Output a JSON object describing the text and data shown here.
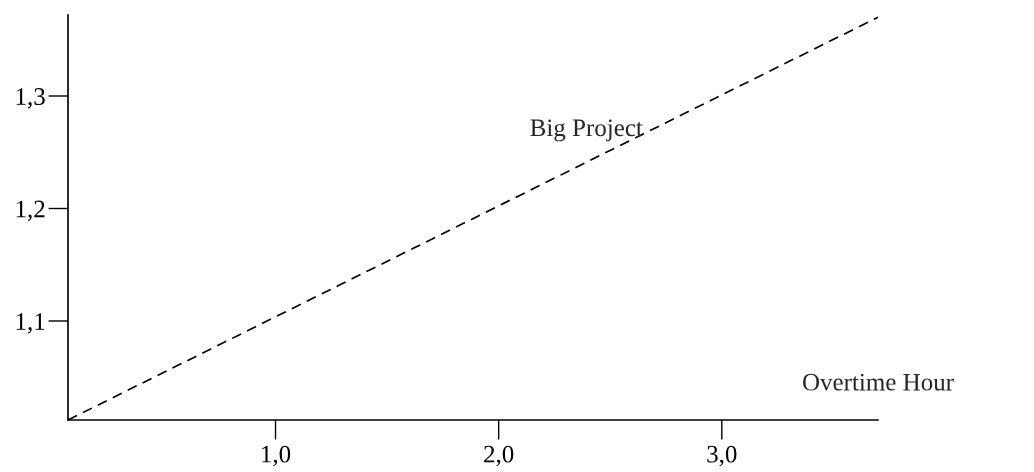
{
  "chart_data": {
    "type": "line",
    "xlabel": "Overtime Hour",
    "x": [
      0.07,
      3.7
    ],
    "series": [
      {
        "name": "Big Project",
        "color": "#000000",
        "values": [
          1.012,
          1.37
        ]
      }
    ],
    "line_style": "dashed",
    "marker": "none",
    "xlim": [
      0.07,
      3.7
    ],
    "ylim": [
      1.012,
      1.372
    ],
    "xticks": [
      {
        "value": 1.0,
        "label": "1,0"
      },
      {
        "value": 2.0,
        "label": "2,0"
      },
      {
        "value": 3.0,
        "label": "3,0"
      }
    ],
    "yticks": [
      {
        "value": 1.1,
        "label": "1,1"
      },
      {
        "value": 1.2,
        "label": "1,2"
      },
      {
        "value": 1.3,
        "label": "1,3"
      }
    ],
    "grid": false,
    "legend": false
  }
}
